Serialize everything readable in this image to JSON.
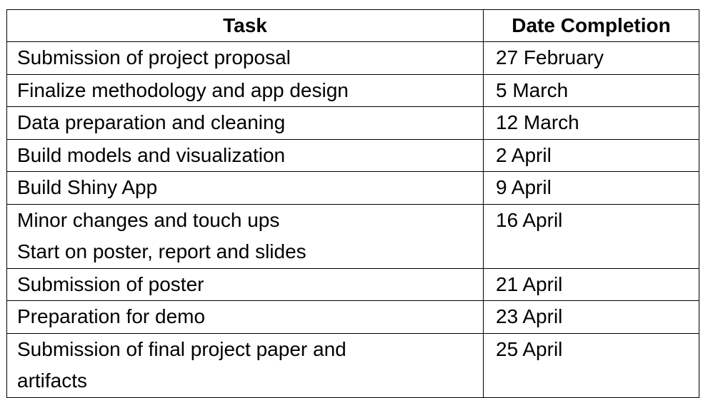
{
  "table": {
    "headers": {
      "task": "Task",
      "date": "Date Completion"
    },
    "rows": [
      {
        "task": "Submission of project proposal",
        "date": "27 February"
      },
      {
        "task": "Finalize methodology and app design",
        "date": "5 March"
      },
      {
        "task": "Data preparation and cleaning",
        "date": "12 March"
      },
      {
        "task": "Build models and visualization",
        "date": "2 April"
      },
      {
        "task": "Build Shiny App",
        "date": "9 April"
      },
      {
        "task": "Minor changes and touch ups\nStart on poster, report and slides",
        "date": "16 April"
      },
      {
        "task": "Submission of poster",
        "date": "21 April"
      },
      {
        "task": "Preparation for demo",
        "date": "23 April"
      },
      {
        "task": "Submission of final project paper and\nartifacts",
        "date": "25 April"
      }
    ]
  }
}
